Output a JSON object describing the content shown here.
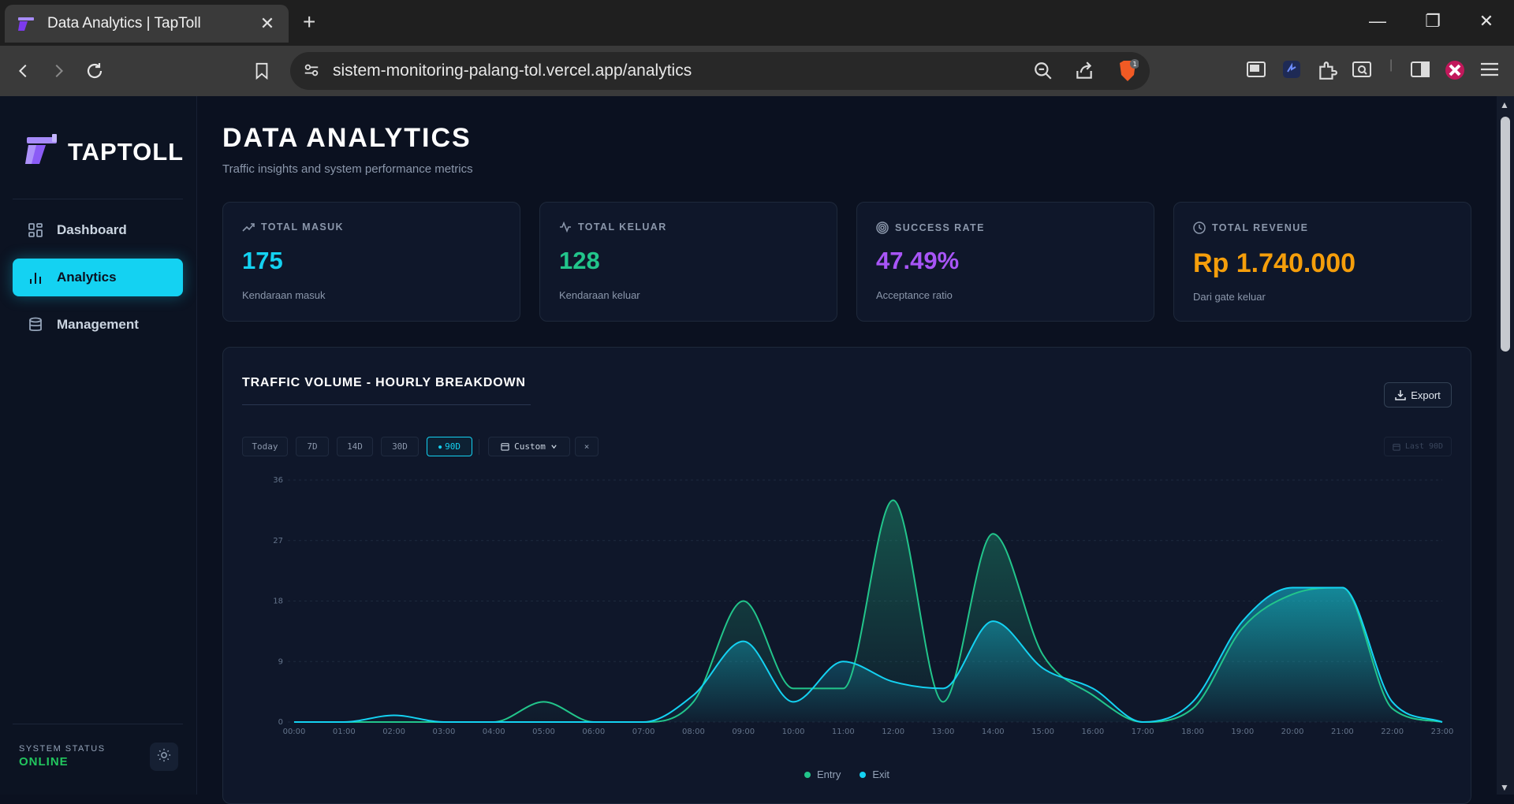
{
  "browser": {
    "tab_title": "Data Analytics | TapToll",
    "url": "sistem-monitoring-palang-tol.vercel.app/analytics",
    "shield_badge": "1"
  },
  "sidebar": {
    "logo_text": "TAPTOLL",
    "items": [
      {
        "label": "Dashboard",
        "icon": "grid-icon"
      },
      {
        "label": "Analytics",
        "icon": "bar-chart-icon"
      },
      {
        "label": "Management",
        "icon": "database-icon"
      }
    ],
    "status_label": "SYSTEM STATUS",
    "status_value": "ONLINE"
  },
  "header": {
    "title": "DATA ANALYTICS",
    "subtitle": "Traffic insights and system performance metrics"
  },
  "stats": [
    {
      "label": "TOTAL MASUK",
      "value": "175",
      "sub": "Kendaraan masuk",
      "color": "#14d2f2",
      "icon": "trending-up-icon"
    },
    {
      "label": "TOTAL KELUAR",
      "value": "128",
      "sub": "Kendaraan keluar",
      "color": "#22c58b",
      "icon": "activity-icon"
    },
    {
      "label": "SUCCESS RATE",
      "value": "47.49%",
      "sub": "Acceptance ratio",
      "color": "#a855f7",
      "icon": "target-icon"
    },
    {
      "label": "TOTAL REVENUE",
      "value": "Rp 1.740.000",
      "sub": "Dari gate keluar",
      "color": "#f59e0b",
      "icon": "clock-icon"
    }
  ],
  "chart_panel": {
    "title": "TRAFFIC VOLUME - HOURLY BREAKDOWN",
    "export_label": "Export",
    "ranges": [
      "Today",
      "7D",
      "14D",
      "30D",
      "90D"
    ],
    "active_range": "90D",
    "custom_label": "Custom",
    "clear_label": "×",
    "last_badge": "Last 90D"
  },
  "chart_data": {
    "type": "area",
    "categories": [
      "00:00",
      "01:00",
      "02:00",
      "03:00",
      "04:00",
      "05:00",
      "06:00",
      "07:00",
      "08:00",
      "09:00",
      "10:00",
      "11:00",
      "12:00",
      "13:00",
      "14:00",
      "15:00",
      "16:00",
      "17:00",
      "18:00",
      "19:00",
      "20:00",
      "21:00",
      "22:00",
      "23:00"
    ],
    "ylim": [
      0,
      36
    ],
    "yticks": [
      0,
      9,
      18,
      27,
      36
    ],
    "grid": true,
    "legend": "bottom-center",
    "series": [
      {
        "name": "Entry",
        "color": "#22c58b",
        "values": [
          0,
          0,
          0,
          0,
          0,
          3,
          0,
          0,
          3,
          18,
          5,
          5,
          33,
          3,
          28,
          10,
          4,
          0,
          2,
          14,
          19,
          20,
          2,
          0
        ]
      },
      {
        "name": "Exit",
        "color": "#14d2f2",
        "values": [
          0,
          0,
          1,
          0,
          0,
          0,
          0,
          0,
          4,
          12,
          3,
          9,
          6,
          5,
          15,
          8,
          5,
          0,
          3,
          15,
          20,
          20,
          3,
          0
        ]
      }
    ]
  }
}
